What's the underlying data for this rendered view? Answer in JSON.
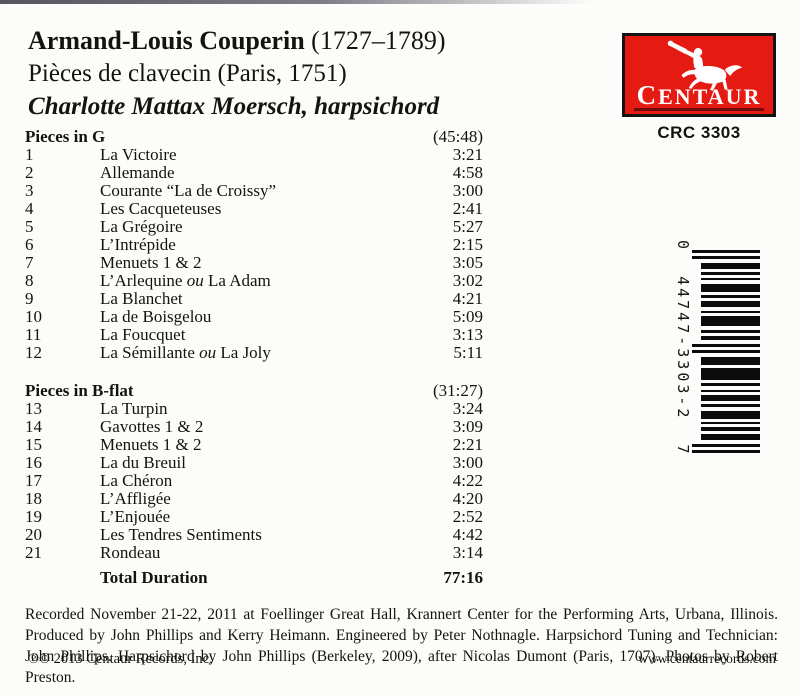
{
  "album": {
    "composer": "Armand-Louis Couperin",
    "dates": "(1727–1789)",
    "work": "Pièces de clavecin (Paris, 1751)",
    "performer": "Charlotte Mattax Moersch, harpsichord"
  },
  "label": {
    "logo_text": "CENTAUR",
    "catalog": "CRC 3303",
    "brand_red": "#e51a12",
    "website": "www.centaurrecords.com",
    "copyright_line": "℗© 2013 Centaur Records, Inc."
  },
  "sections": [
    {
      "title": "Pieces in G",
      "duration": "(45:48)",
      "tracks": [
        {
          "num": "1",
          "title": "La Victoire",
          "time": "3:21"
        },
        {
          "num": "2",
          "title": "Allemande",
          "time": "4:58"
        },
        {
          "num": "3",
          "title": "Courante “La de Croissy”",
          "time": "3:00"
        },
        {
          "num": "4",
          "title": "Les Cacqueteuses",
          "time": "2:41"
        },
        {
          "num": "5",
          "title": "La Grégoire",
          "time": "5:27"
        },
        {
          "num": "6",
          "title": "L’Intrépide",
          "time": "2:15"
        },
        {
          "num": "7",
          "title": "Menuets 1 & 2",
          "time": "3:05"
        },
        {
          "num": "8",
          "title": "L’Arlequine *ou* La Adam",
          "time": "3:02"
        },
        {
          "num": "9",
          "title": "La Blanchet",
          "time": "4:21"
        },
        {
          "num": "10",
          "title": "La de Boisgelou",
          "time": "5:09"
        },
        {
          "num": "11",
          "title": "La Foucquet",
          "time": "3:13"
        },
        {
          "num": "12",
          "title": "La Sémillante *ou* La Joly",
          "time": "5:11"
        }
      ]
    },
    {
      "title": "Pieces in B-flat",
      "duration": "(31:27)",
      "tracks": [
        {
          "num": "13",
          "title": "La Turpin",
          "time": "3:24"
        },
        {
          "num": "14",
          "title": "Gavottes 1 & 2",
          "time": "3:09"
        },
        {
          "num": "15",
          "title": "Menuets 1 & 2",
          "time": "2:21"
        },
        {
          "num": "16",
          "title": "La du Breuil",
          "time": "3:00"
        },
        {
          "num": "17",
          "title": "La Chéron",
          "time": "4:22"
        },
        {
          "num": "18",
          "title": "L’Affligée",
          "time": "4:20"
        },
        {
          "num": "19",
          "title": "L’Enjouée",
          "time": "2:52"
        },
        {
          "num": "20",
          "title": "Les Tendres Sentiments",
          "time": "4:42"
        },
        {
          "num": "21",
          "title": "Rondeau",
          "time": "3:14"
        }
      ]
    }
  ],
  "total": {
    "label": "Total Duration",
    "time": "77:16"
  },
  "credits": "Recorded November 21-22, 2011 at Foellinger Great Hall, Krannert Center for the Performing Arts, Urbana, Illinois.  Produced by John Phillips and Kerry Heimann.  Engineered by Peter Nothnagle.  Harpsichord Tuning and Technician:  John Phillips.  Harpsichord by John Phillips (Berkeley, 2009), after Nicolas Dumont (Paris, 1707).  Photos by Robert Preston.",
  "barcode": {
    "text": "0  44747-3303-2  7",
    "bars": [
      [
        3,
        3,
        1
      ],
      [
        3,
        4,
        1
      ],
      [
        6,
        3,
        0
      ],
      [
        3,
        3,
        0
      ],
      [
        2,
        4,
        0
      ],
      [
        8,
        3,
        0
      ],
      [
        3,
        3,
        0
      ],
      [
        6,
        4,
        0
      ],
      [
        2,
        3,
        0
      ],
      [
        10,
        4,
        0
      ],
      [
        3,
        3,
        0
      ],
      [
        4,
        4,
        0
      ],
      [
        3,
        3,
        1
      ],
      [
        3,
        4,
        1
      ],
      [
        8,
        3,
        0
      ],
      [
        12,
        3,
        0
      ],
      [
        3,
        4,
        0
      ],
      [
        2,
        3,
        0
      ],
      [
        6,
        3,
        0
      ],
      [
        3,
        4,
        0
      ],
      [
        8,
        3,
        0
      ],
      [
        2,
        3,
        0
      ],
      [
        4,
        3,
        0
      ],
      [
        6,
        4,
        0
      ],
      [
        3,
        3,
        1
      ],
      [
        3,
        0,
        1
      ]
    ]
  }
}
